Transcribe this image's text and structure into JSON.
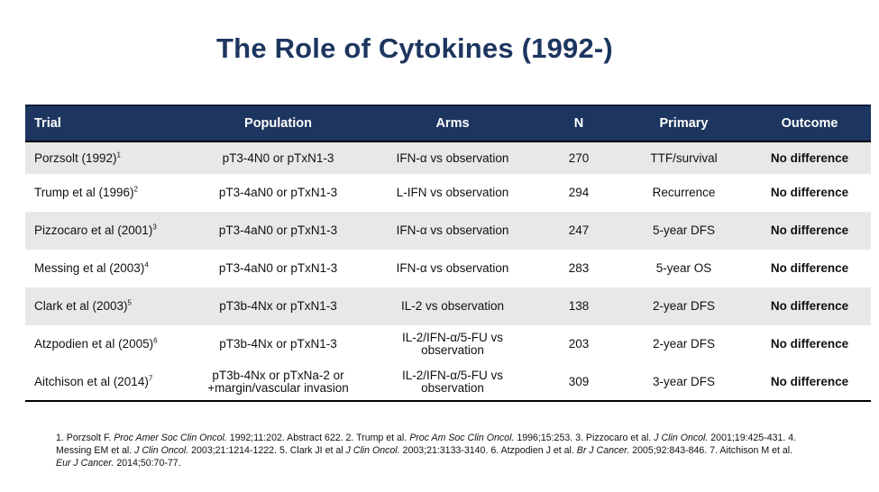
{
  "title": "The Role of Cytokines (1992-)",
  "table": {
    "headers": {
      "trial": "Trial",
      "population": "Population",
      "arms": "Arms",
      "n": "N",
      "primary": "Primary",
      "outcome": "Outcome"
    },
    "rows": [
      {
        "trial": "Porzsolt (1992)",
        "ref": "1",
        "population": "pT3-4N0 or pTxN1-3",
        "arms": "IFN-α vs observation",
        "n": "270",
        "primary": "TTF/survival",
        "outcome": "No difference"
      },
      {
        "trial": "Trump et al (1996)",
        "ref": "2",
        "population": "pT3-4aN0 or pTxN1-3",
        "arms": "L-IFN vs observation",
        "n": "294",
        "primary": "Recurrence",
        "outcome": "No difference"
      },
      {
        "trial": "Pizzocaro et al (2001)",
        "ref": "3",
        "population": "pT3-4aN0 or pTxN1-3",
        "arms": "IFN-α vs observation",
        "n": "247",
        "primary": "5-year DFS",
        "outcome": "No difference"
      },
      {
        "trial": "Messing et al (2003)",
        "ref": "4",
        "population": "pT3-4aN0 or pTxN1-3",
        "arms": "IFN-α vs observation",
        "n": "283",
        "primary": "5-year OS",
        "outcome": "No difference"
      },
      {
        "trial": "Clark et al (2003)",
        "ref": "5",
        "population": "pT3b-4Nx or pTxN1-3",
        "arms": "IL-2 vs observation",
        "n": "138",
        "primary": "2-year DFS",
        "outcome": "No difference"
      },
      {
        "trial": "Atzpodien et al (2005)",
        "ref": "6",
        "population": "pT3b-4Nx or pTxN1-3",
        "arms": "IL-2/IFN-α/5-FU vs observation",
        "n": "203",
        "primary": "2-year DFS",
        "outcome": "No difference"
      },
      {
        "trial": "Aitchison et al (2014)",
        "ref": "7",
        "population": "pT3b-4Nx or pTxNa-2 or +margin/vascular invasion",
        "arms": "IL-2/IFN-α/5-FU vs observation",
        "n": "309",
        "primary": "3-year DFS",
        "outcome": "No difference"
      }
    ]
  },
  "footnote": {
    "refs": [
      {
        "num": "1. ",
        "pre": "Porzsolt F. ",
        "journal": "Proc Amer Soc Clin Oncol.",
        "post": " 1992;11:202. Abstract 622. "
      },
      {
        "num": "2. ",
        "pre": "Trump et al. ",
        "journal": "Proc Am Soc Clin Oncol.",
        "post": " 1996;15:253. "
      },
      {
        "num": "3. ",
        "pre": "Pizzocaro et al. ",
        "journal": "J Clin Oncol.",
        "post": " 2001;19:425-431. "
      },
      {
        "num": "4. ",
        "pre": "Messing EM et al. ",
        "journal": "J Clin Oncol.",
        "post": " 2003;21:1214-1222. "
      },
      {
        "num": "5. ",
        "pre": "Clark JI et al ",
        "journal": "J Clin Oncol.",
        "post": " 2003;21:3133-3140. "
      },
      {
        "num": "6. ",
        "pre": "Atzpodien J et al. ",
        "journal": "Br J Cancer.",
        "post": " 2005;92:843-846. "
      },
      {
        "num": "7. ",
        "pre": "Aitchison M et al. ",
        "journal": "Eur J Cancer.",
        "post": " 2014;50:70-77."
      }
    ]
  }
}
